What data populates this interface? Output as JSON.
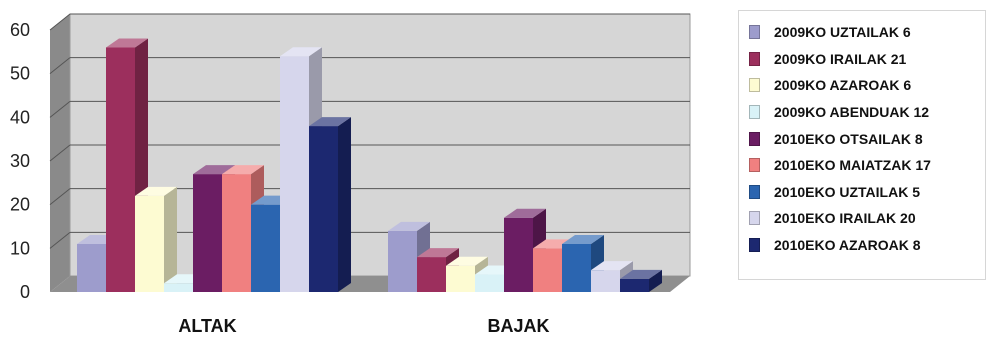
{
  "chart_data": {
    "type": "bar",
    "variant": "3d-clustered",
    "categories": [
      "ALTAK",
      "BAJAK"
    ],
    "ylim": [
      0,
      60
    ],
    "yticks": [
      0,
      10,
      20,
      30,
      40,
      50,
      60
    ],
    "grid": true,
    "legend_position": "right",
    "series": [
      {
        "name": "2009KO UZTAILAK 6",
        "color": "#9d9ccc",
        "values": [
          11,
          14
        ]
      },
      {
        "name": "2009KO IRAILAK 21",
        "color": "#9c2f5d",
        "values": [
          56,
          8
        ]
      },
      {
        "name": "2009KO AZAROAK 6",
        "color": "#fdfbd2",
        "values": [
          22,
          6
        ]
      },
      {
        "name": "2009KO ABENDUAK 12",
        "color": "#d9f2f7",
        "values": [
          2,
          4
        ]
      },
      {
        "name": "2010EKO OTSAILAK 8",
        "color": "#6b1d63",
        "values": [
          27,
          17
        ]
      },
      {
        "name": "2010EKO MAIATZAK 17",
        "color": "#f08080",
        "values": [
          27,
          10
        ]
      },
      {
        "name": "2010EKO UZTAILAK 5",
        "color": "#2b65b0",
        "values": [
          20,
          11
        ]
      },
      {
        "name": "2010EKO IRAILAK 20",
        "color": "#d6d6ec",
        "values": [
          54,
          5
        ]
      },
      {
        "name": "2010EKO AZAROAK 8",
        "color": "#1c2870",
        "values": [
          38,
          3
        ]
      }
    ]
  }
}
